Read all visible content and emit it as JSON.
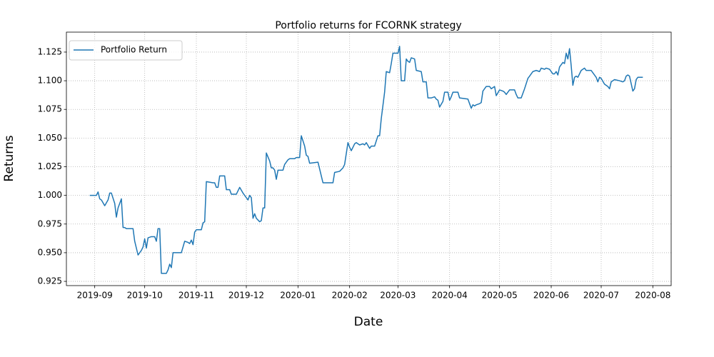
{
  "chart_data": {
    "type": "line",
    "title": "Portfolio returns for FCORNK strategy",
    "x_label": "Date",
    "y_label": "Returns",
    "legend": "upper left",
    "grid": true,
    "xlim": [
      "2019-08-15",
      "2020-08-12"
    ],
    "xticks": [
      {
        "value": "2019-09-01",
        "label": "2019-09"
      },
      {
        "value": "2019-10-01",
        "label": "2019-10"
      },
      {
        "value": "2019-11-01",
        "label": "2019-11"
      },
      {
        "value": "2019-12-01",
        "label": "2019-12"
      },
      {
        "value": "2020-01-01",
        "label": "2020-01"
      },
      {
        "value": "2020-02-01",
        "label": "2020-02"
      },
      {
        "value": "2020-03-01",
        "label": "2020-03"
      },
      {
        "value": "2020-04-01",
        "label": "2020-04"
      },
      {
        "value": "2020-05-01",
        "label": "2020-05"
      },
      {
        "value": "2020-06-01",
        "label": "2020-06"
      },
      {
        "value": "2020-07-01",
        "label": "2020-07"
      },
      {
        "value": "2020-08-01",
        "label": "2020-08"
      }
    ],
    "ylim": [
      0.9213,
      1.1424
    ],
    "yticks": [
      0.925,
      {
        "value": 0.95,
        "label": "0.950"
      },
      0.975,
      {
        "value": 1,
        "label": "1.000"
      },
      1.025,
      {
        "value": 1.05,
        "label": "1.050"
      },
      1.075,
      {
        "value": 1.1,
        "label": "1.100"
      },
      1.125
    ],
    "x": [
      "2019-08-29",
      "2019-09-02",
      "2019-09-03",
      "2019-09-04",
      "2019-09-05",
      "2019-09-07",
      "2019-09-09",
      "2019-09-10",
      "2019-09-11",
      "2019-09-13",
      "2019-09-14",
      "2019-09-15",
      "2019-09-17",
      "2019-09-18",
      "2019-09-19",
      "2019-09-20",
      "2019-09-24",
      "2019-09-25",
      "2019-09-27",
      "2019-09-29",
      "2019-09-30",
      "2019-10-01",
      "2019-10-02",
      "2019-10-03",
      "2019-10-05",
      "2019-10-07",
      "2019-10-08",
      "2019-10-09",
      "2019-10-10",
      "2019-10-11",
      "2019-10-14",
      "2019-10-15",
      "2019-10-16",
      "2019-10-17",
      "2019-10-18",
      "2019-10-23",
      "2019-10-25",
      "2019-10-27",
      "2019-10-28",
      "2019-10-29",
      "2019-10-30",
      "2019-10-31",
      "2019-11-01",
      "2019-11-04",
      "2019-11-05",
      "2019-11-06",
      "2019-11-07",
      "2019-11-11",
      "2019-11-12",
      "2019-11-13",
      "2019-11-14",
      "2019-11-15",
      "2019-11-18",
      "2019-11-19",
      "2019-11-21",
      "2019-11-22",
      "2019-11-25",
      "2019-11-27",
      "2019-11-29",
      "2019-12-02",
      "2019-12-03",
      "2019-12-04",
      "2019-12-05",
      "2019-12-06",
      "2019-12-07",
      "2019-12-09",
      "2019-12-10",
      "2019-12-11",
      "2019-12-12",
      "2019-12-13",
      "2019-12-15",
      "2019-12-16",
      "2019-12-17",
      "2019-12-18",
      "2019-12-19",
      "2019-12-20",
      "2019-12-23",
      "2019-12-24",
      "2019-12-26",
      "2019-12-27",
      "2019-12-30",
      "2019-12-31",
      "2020-01-02",
      "2020-01-03",
      "2020-01-05",
      "2020-01-06",
      "2020-01-07",
      "2020-01-08",
      "2020-01-13",
      "2020-01-14",
      "2020-01-16",
      "2020-01-22",
      "2020-01-23",
      "2020-01-26",
      "2020-01-28",
      "2020-01-29",
      "2020-01-31",
      "2020-02-01",
      "2020-02-02",
      "2020-02-04",
      "2020-02-05",
      "2020-02-07",
      "2020-02-09",
      "2020-02-10",
      "2020-02-11",
      "2020-02-13",
      "2020-02-14",
      "2020-02-16",
      "2020-02-18",
      "2020-02-19",
      "2020-02-20",
      "2020-02-22",
      "2020-02-23",
      "2020-02-25",
      "2020-02-26",
      "2020-02-27",
      "2020-03-01",
      "2020-03-02",
      "2020-03-03",
      "2020-03-05",
      "2020-03-06",
      "2020-03-07",
      "2020-03-08",
      "2020-03-09",
      "2020-03-11",
      "2020-03-12",
      "2020-03-15",
      "2020-03-16",
      "2020-03-17",
      "2020-03-18",
      "2020-03-19",
      "2020-03-21",
      "2020-03-23",
      "2020-03-24",
      "2020-03-25",
      "2020-03-26",
      "2020-03-28",
      "2020-03-29",
      "2020-03-31",
      "2020-04-01",
      "2020-04-02",
      "2020-04-03",
      "2020-04-06",
      "2020-04-07",
      "2020-04-12",
      "2020-04-13",
      "2020-04-14",
      "2020-04-15",
      "2020-04-16",
      "2020-04-17",
      "2020-04-19",
      "2020-04-20",
      "2020-04-21",
      "2020-04-22",
      "2020-04-23",
      "2020-04-25",
      "2020-04-26",
      "2020-04-28",
      "2020-04-29",
      "2020-05-01",
      "2020-05-03",
      "2020-05-04",
      "2020-05-05",
      "2020-05-07",
      "2020-05-10",
      "2020-05-11",
      "2020-05-12",
      "2020-05-14",
      "2020-05-16",
      "2020-05-18",
      "2020-05-19",
      "2020-05-21",
      "2020-05-23",
      "2020-05-25",
      "2020-05-26",
      "2020-05-28",
      "2020-05-29",
      "2020-05-31",
      "2020-06-02",
      "2020-06-03",
      "2020-06-04",
      "2020-06-05",
      "2020-06-06",
      "2020-06-08",
      "2020-06-09",
      "2020-06-10",
      "2020-06-11",
      "2020-06-12",
      "2020-06-13",
      "2020-06-14",
      "2020-06-15",
      "2020-06-16",
      "2020-06-17",
      "2020-06-19",
      "2020-06-21",
      "2020-06-22",
      "2020-06-25",
      "2020-06-28",
      "2020-06-29",
      "2020-06-30",
      "2020-07-01",
      "2020-07-03",
      "2020-07-05",
      "2020-07-06",
      "2020-07-07",
      "2020-07-09",
      "2020-07-12",
      "2020-07-14",
      "2020-07-15",
      "2020-07-16",
      "2020-07-17",
      "2020-07-18",
      "2020-07-20",
      "2020-07-21",
      "2020-07-22",
      "2020-07-23",
      "2020-07-26"
    ],
    "series": [
      {
        "name": "Portfolio Return",
        "color": "#1f77b4",
        "values": [
          1.0,
          1.0,
          1.003,
          0.997,
          0.996,
          0.991,
          0.996,
          1.002,
          1.002,
          0.993,
          0.981,
          0.989,
          0.997,
          0.972,
          0.972,
          0.971,
          0.971,
          0.96,
          0.948,
          0.952,
          0.955,
          0.962,
          0.954,
          0.963,
          0.964,
          0.964,
          0.96,
          0.971,
          0.971,
          0.932,
          0.932,
          0.935,
          0.94,
          0.937,
          0.95,
          0.95,
          0.96,
          0.959,
          0.958,
          0.961,
          0.957,
          0.968,
          0.97,
          0.97,
          0.976,
          0.977,
          1.012,
          1.011,
          1.011,
          1.007,
          1.007,
          1.017,
          1.017,
          1.005,
          1.005,
          1.001,
          1.001,
          1.007,
          1.002,
          0.996,
          1.0,
          0.998,
          0.98,
          0.984,
          0.98,
          0.977,
          0.978,
          0.989,
          0.989,
          1.037,
          1.03,
          1.024,
          1.024,
          1.022,
          1.014,
          1.022,
          1.022,
          1.027,
          1.031,
          1.032,
          1.032,
          1.033,
          1.033,
          1.052,
          1.043,
          1.035,
          1.034,
          1.028,
          1.029,
          1.023,
          1.011,
          1.011,
          1.02,
          1.021,
          1.024,
          1.027,
          1.046,
          1.042,
          1.039,
          1.045,
          1.046,
          1.044,
          1.045,
          1.044,
          1.046,
          1.041,
          1.043,
          1.043,
          1.052,
          1.052,
          1.067,
          1.09,
          1.108,
          1.107,
          1.115,
          1.124,
          1.124,
          1.13,
          1.1,
          1.1,
          1.119,
          1.117,
          1.116,
          1.12,
          1.119,
          1.109,
          1.108,
          1.099,
          1.099,
          1.099,
          1.085,
          1.085,
          1.086,
          1.084,
          1.083,
          1.077,
          1.082,
          1.09,
          1.09,
          1.083,
          1.086,
          1.09,
          1.09,
          1.085,
          1.084,
          1.08,
          1.076,
          1.079,
          1.078,
          1.079,
          1.08,
          1.081,
          1.091,
          1.093,
          1.095,
          1.095,
          1.093,
          1.095,
          1.087,
          1.092,
          1.091,
          1.09,
          1.088,
          1.092,
          1.092,
          1.088,
          1.085,
          1.085,
          1.093,
          1.102,
          1.104,
          1.108,
          1.109,
          1.108,
          1.111,
          1.11,
          1.111,
          1.11,
          1.106,
          1.106,
          1.108,
          1.105,
          1.112,
          1.116,
          1.115,
          1.124,
          1.119,
          1.128,
          1.113,
          1.096,
          1.103,
          1.104,
          1.103,
          1.109,
          1.111,
          1.109,
          1.109,
          1.103,
          1.099,
          1.103,
          1.102,
          1.097,
          1.095,
          1.093,
          1.099,
          1.101,
          1.1,
          1.099,
          1.1,
          1.104,
          1.105,
          1.104,
          1.091,
          1.093,
          1.101,
          1.103,
          1.103
        ]
      }
    ]
  }
}
